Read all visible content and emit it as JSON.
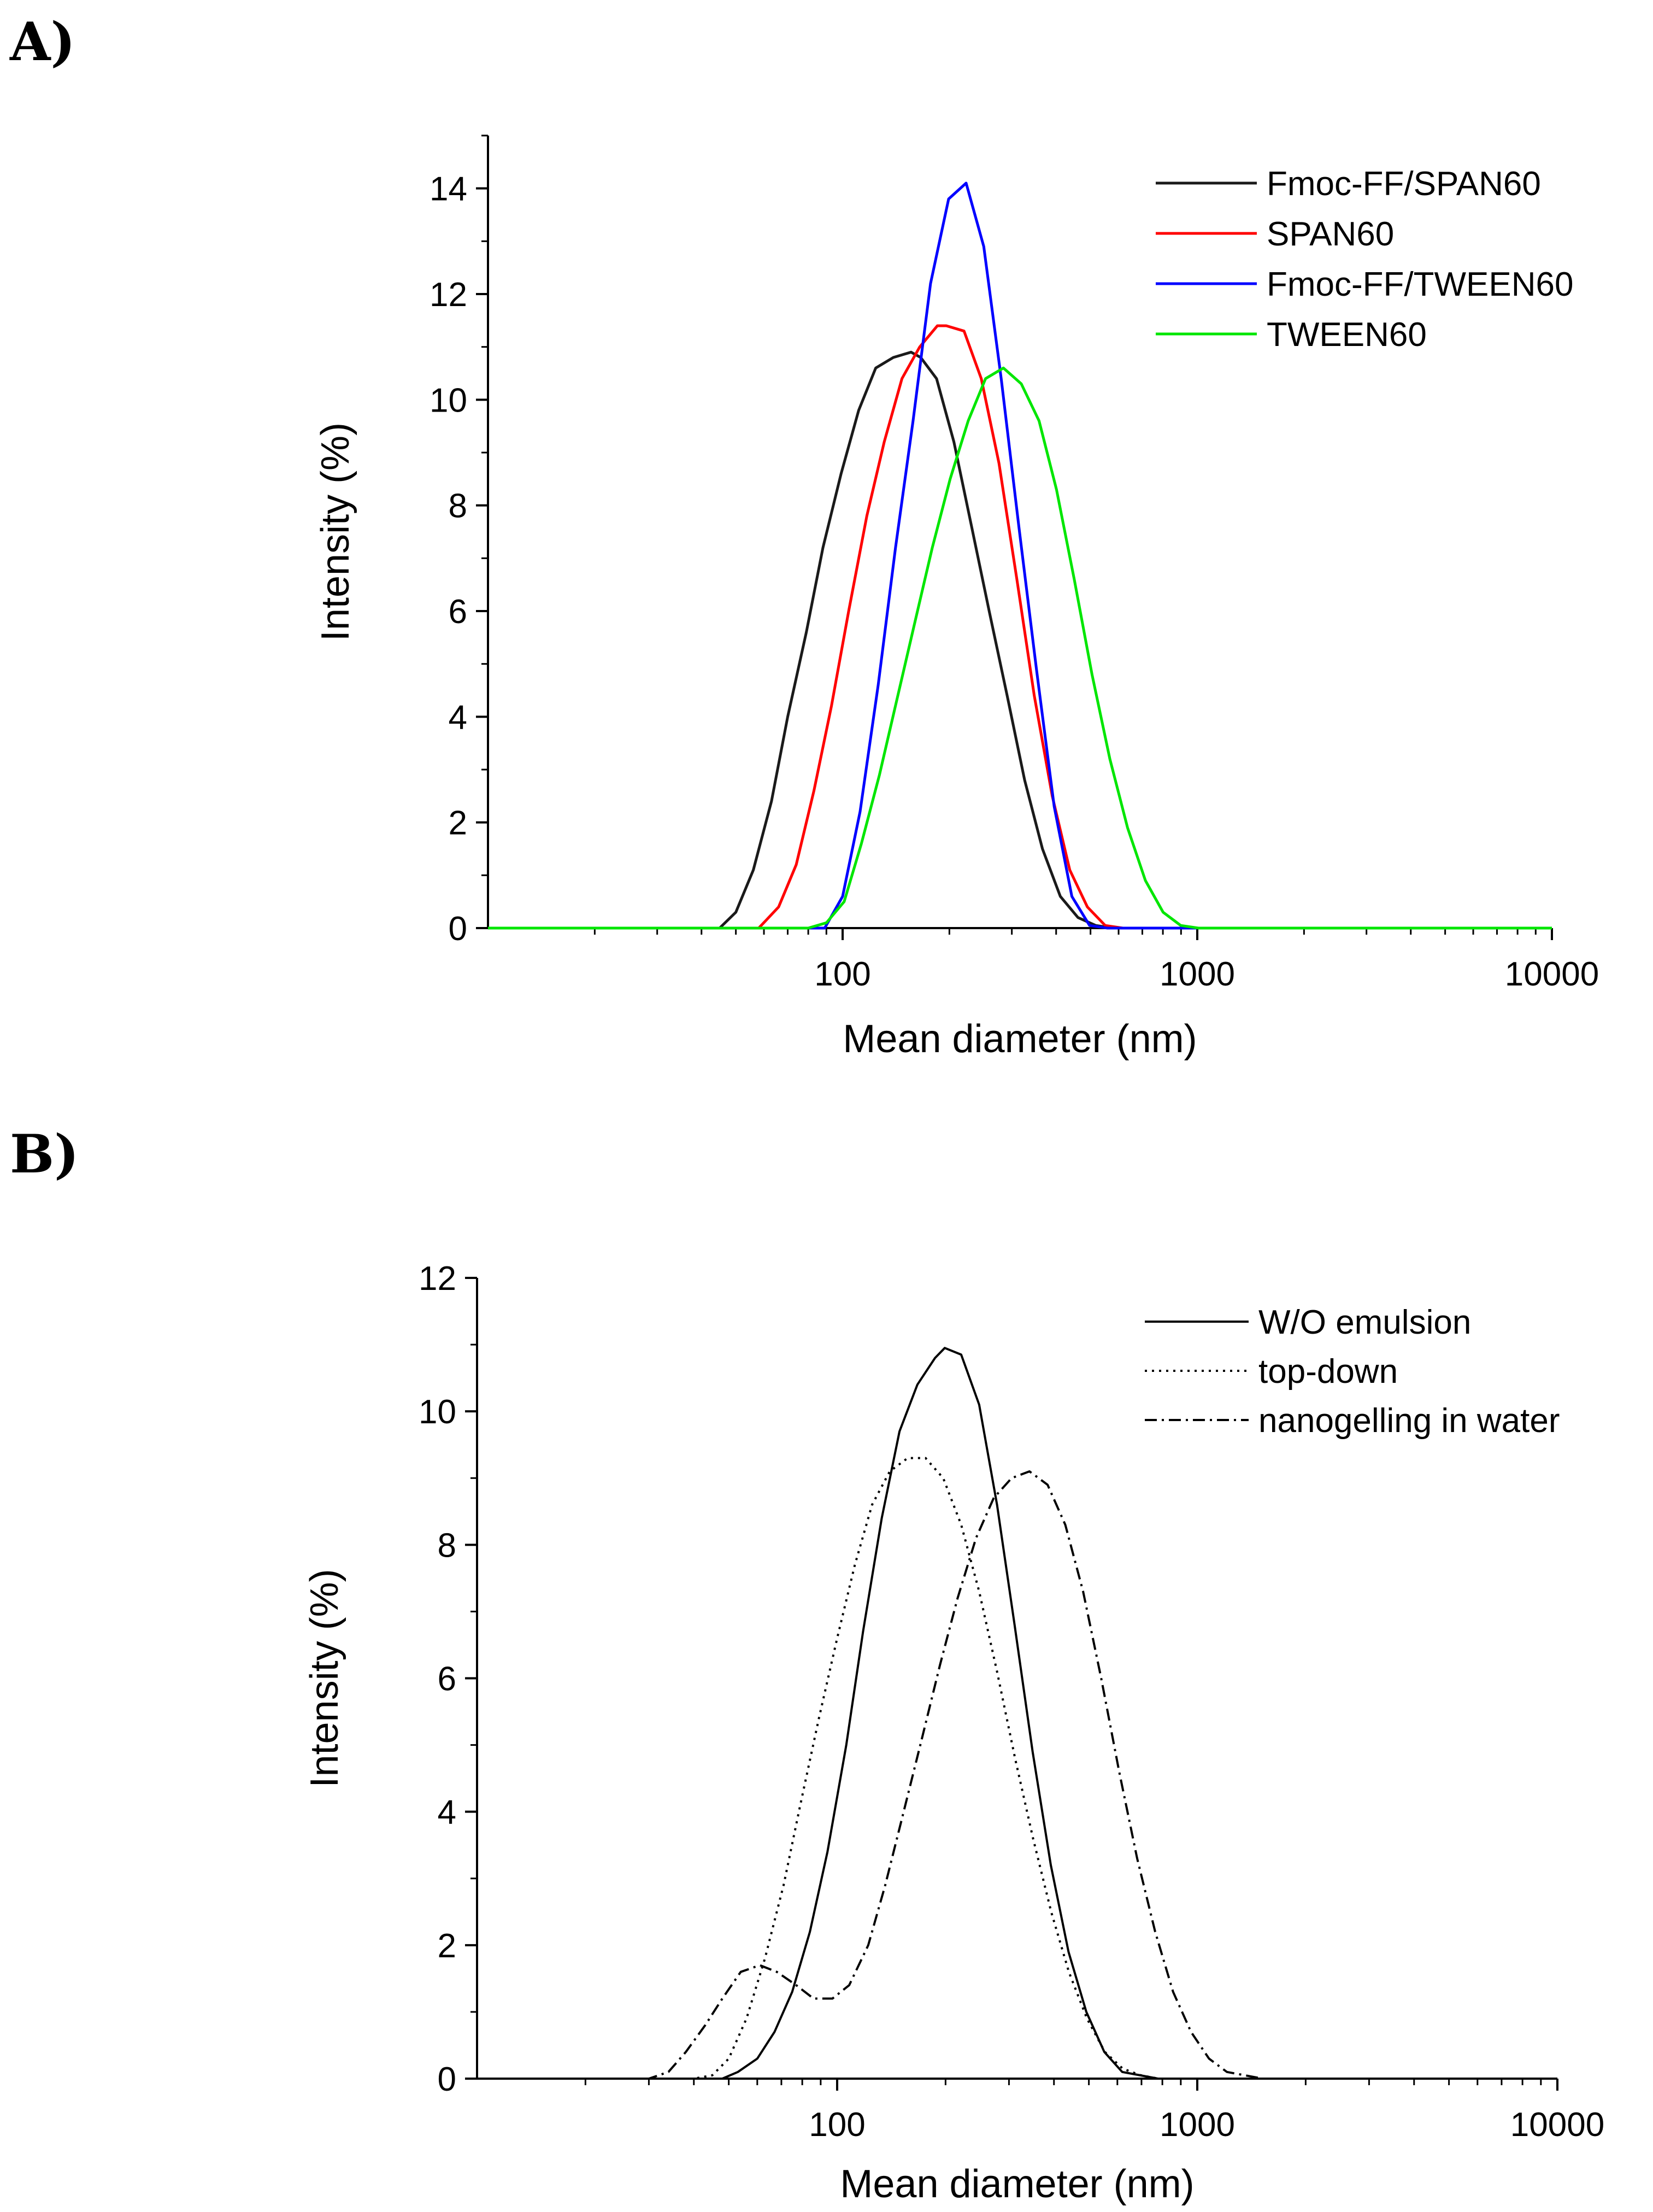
{
  "panels": {
    "a": {
      "label": "A)"
    },
    "b": {
      "label": "B)"
    }
  },
  "chart_data": [
    {
      "type": "line",
      "panel": "A)",
      "title": "",
      "xlabel": "Mean diameter (nm)",
      "ylabel": "Intensity (%)",
      "xscale": "log",
      "xlim": [
        10,
        10000
      ],
      "ylim": [
        0,
        15
      ],
      "xticks": [
        100,
        1000,
        10000
      ],
      "xtick_labels": [
        "100",
        "1000",
        "10000"
      ],
      "yticks": [
        0,
        2,
        4,
        6,
        8,
        10,
        12,
        14
      ],
      "ytick_labels": [
        "0",
        "2",
        "4",
        "6",
        "8",
        "10",
        "12",
        "14"
      ],
      "grid": false,
      "legend_position": "top-right",
      "series": [
        {
          "name": "Fmoc-FF/SPAN60",
          "color": "#1a1a1a",
          "dash": "solid",
          "x": [
            10,
            45,
            50,
            56,
            63,
            70,
            79,
            88,
            99,
            111,
            124,
            139,
            156,
            166,
            184,
            206,
            231,
            259,
            291,
            326,
            366,
            411,
            461,
            517,
            580,
            651,
            730,
            820,
            10000
          ],
          "y": [
            0,
            0,
            0.3,
            1.1,
            2.4,
            4.0,
            5.6,
            7.2,
            8.6,
            9.8,
            10.6,
            10.8,
            10.9,
            10.8,
            10.4,
            9.2,
            7.6,
            6.0,
            4.4,
            2.8,
            1.5,
            0.6,
            0.2,
            0.05,
            0,
            0,
            0,
            0,
            0
          ]
        },
        {
          "name": "SPAN60",
          "color": "#ff0000",
          "dash": "solid",
          "x": [
            10,
            58,
            66,
            74,
            83,
            93,
            104,
            117,
            131,
            147,
            165,
            185,
            196,
            220,
            246,
            276,
            310,
            347,
            390,
            437,
            490,
            550,
            617,
            692,
            10000
          ],
          "y": [
            0,
            0,
            0.4,
            1.2,
            2.6,
            4.2,
            6.0,
            7.8,
            9.2,
            10.4,
            11.0,
            11.4,
            11.4,
            11.3,
            10.4,
            8.8,
            6.6,
            4.4,
            2.5,
            1.1,
            0.4,
            0.05,
            0,
            0,
            0
          ]
        },
        {
          "name": "Fmoc-FF/TWEEN60",
          "color": "#0000ff",
          "dash": "solid",
          "x": [
            10,
            89,
            100,
            112,
            126,
            141,
            158,
            177,
            199,
            223,
            250,
            280,
            314,
            352,
            395,
            443,
            497,
            558,
            626,
            702,
            10000
          ],
          "y": [
            0,
            0,
            0.6,
            2.2,
            4.6,
            7.2,
            9.6,
            12.2,
            13.8,
            14.1,
            12.9,
            10.4,
            7.6,
            4.9,
            2.3,
            0.6,
            0.05,
            0,
            0,
            0,
            0
          ]
        },
        {
          "name": "TWEEN60",
          "color": "#00e600",
          "dash": "solid",
          "x": [
            10,
            80,
            90,
            101,
            113,
            127,
            142,
            160,
            179,
            201,
            226,
            253,
            284,
            319,
            358,
            401,
            450,
            505,
            567,
            636,
            714,
            801,
            898,
            1008,
            1131,
            1269,
            10000
          ],
          "y": [
            0,
            0,
            0.1,
            0.5,
            1.6,
            2.9,
            4.3,
            5.8,
            7.2,
            8.5,
            9.6,
            10.4,
            10.6,
            10.3,
            9.6,
            8.3,
            6.6,
            4.8,
            3.2,
            1.9,
            0.9,
            0.3,
            0.05,
            0,
            0,
            0,
            0
          ]
        }
      ]
    },
    {
      "type": "line",
      "panel": "B)",
      "title": "",
      "xlabel": "Mean diameter (nm)",
      "ylabel": "Intensity (%)",
      "xscale": "log",
      "xlim": [
        10,
        10000
      ],
      "ylim": [
        0,
        12
      ],
      "xticks": [
        100,
        1000,
        10000
      ],
      "xtick_labels": [
        "100",
        "1000",
        "10000"
      ],
      "yticks": [
        0,
        2,
        4,
        6,
        8,
        10,
        12
      ],
      "ytick_labels": [
        "0",
        "2",
        "4",
        "6",
        "8",
        "10",
        "12"
      ],
      "grid": false,
      "legend_position": "top-right",
      "series": [
        {
          "name": "W/O emulsion",
          "color": "#000000",
          "dash": "solid",
          "x": [
            10,
            48,
            53,
            60,
            67,
            75,
            84,
            94,
            106,
            118,
            133,
            149,
            167,
            187,
            199,
            221,
            248,
            278,
            311,
            349,
            392,
            439,
            492,
            552,
            619,
            694,
            778,
            872,
            10000
          ],
          "y": [
            0,
            0,
            0.1,
            0.3,
            0.7,
            1.3,
            2.2,
            3.4,
            5.0,
            6.7,
            8.4,
            9.7,
            10.4,
            10.8,
            10.95,
            10.85,
            10.1,
            8.6,
            6.8,
            4.9,
            3.2,
            1.9,
            1.0,
            0.4,
            0.1,
            0.05,
            0,
            0,
            0
          ]
        },
        {
          "name": "top-down",
          "color": "#000000",
          "dash": "dotted",
          "x": [
            10,
            40,
            45,
            50,
            56,
            63,
            71,
            79,
            89,
            100,
            112,
            125,
            140,
            157,
            176,
            197,
            221,
            248,
            278,
            312,
            350,
            393,
            440,
            494,
            554,
            621,
            697,
            781,
            876,
            982,
            1100,
            10000
          ],
          "y": [
            0,
            0,
            0.05,
            0.3,
            0.9,
            1.8,
            2.9,
            4.1,
            5.4,
            6.6,
            7.7,
            8.6,
            9.1,
            9.3,
            9.3,
            9.0,
            8.3,
            7.3,
            6.1,
            4.8,
            3.6,
            2.5,
            1.6,
            0.9,
            0.4,
            0.15,
            0.05,
            0,
            0,
            0,
            0,
            0
          ]
        },
        {
          "name": "nanogelling in water",
          "color": "#000000",
          "dash": "dashdot",
          "x": [
            10,
            30,
            34,
            38,
            43,
            48,
            54,
            61,
            68,
            77,
            86,
            97,
            108,
            122,
            136,
            153,
            172,
            193,
            216,
            243,
            272,
            305,
            342,
            384,
            430,
            482,
            541,
            607,
            681,
            764,
            857,
            961,
            1078,
            1209,
            1356,
            1521,
            1706,
            10000
          ],
          "y": [
            0,
            0,
            0.1,
            0.4,
            0.8,
            1.2,
            1.6,
            1.7,
            1.6,
            1.4,
            1.2,
            1.2,
            1.4,
            2.0,
            2.9,
            4.0,
            5.1,
            6.2,
            7.2,
            8.1,
            8.7,
            9.0,
            9.1,
            8.9,
            8.3,
            7.3,
            6.0,
            4.6,
            3.3,
            2.2,
            1.3,
            0.7,
            0.3,
            0.1,
            0.05,
            0,
            0,
            0
          ]
        }
      ]
    }
  ]
}
